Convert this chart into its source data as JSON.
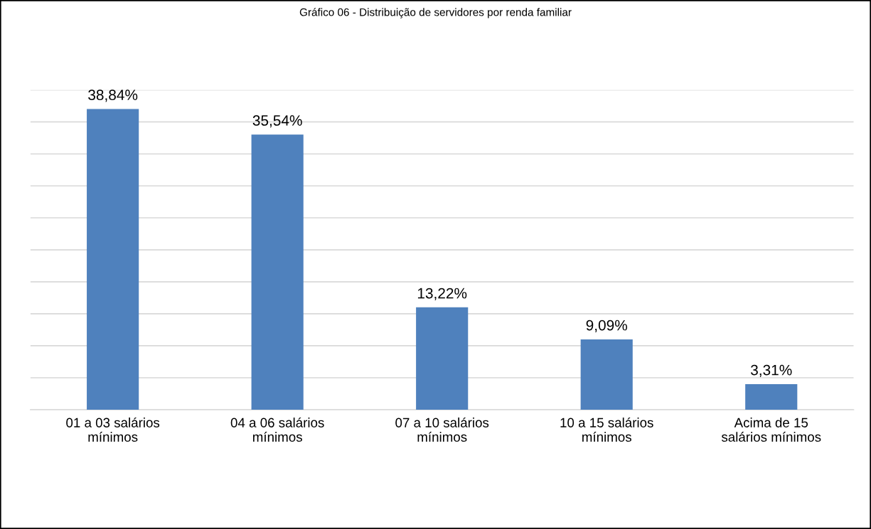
{
  "chart_data": {
    "type": "bar",
    "title": "Gráfico 06 - Distribuição de servidores por renda familiar",
    "categories": [
      "01 a 03 salários\nmínimos",
      "04 a 06 salários\nmínimos",
      "07 a 10 salários\nmínimos",
      "10 a 15 salários\nmínimos",
      "Acima de 15\nsalários mínimos"
    ],
    "values": [
      38.84,
      35.54,
      13.22,
      9.09,
      3.31
    ],
    "value_labels": [
      "38,84%",
      "35,54%",
      "13,22%",
      "9,09%",
      "3,31%"
    ],
    "color": "#4f81bd",
    "ylim": [
      0,
      41.3
    ],
    "yticks": [
      {
        "value": 0,
        "label": null
      },
      {
        "value": 4.13,
        "label": null
      },
      {
        "value": 8.26,
        "label": null
      },
      {
        "value": 12.39,
        "label": null
      },
      {
        "value": 16.52,
        "label": null
      },
      {
        "value": 20.65,
        "label": null
      },
      {
        "value": 24.78,
        "label": null
      },
      {
        "value": 28.91,
        "label": null
      },
      {
        "value": 33.04,
        "label": null
      },
      {
        "value": 37.17,
        "label": null
      },
      {
        "value": 41.3,
        "label": null
      }
    ],
    "grid": "y",
    "tick_labels": "x"
  }
}
